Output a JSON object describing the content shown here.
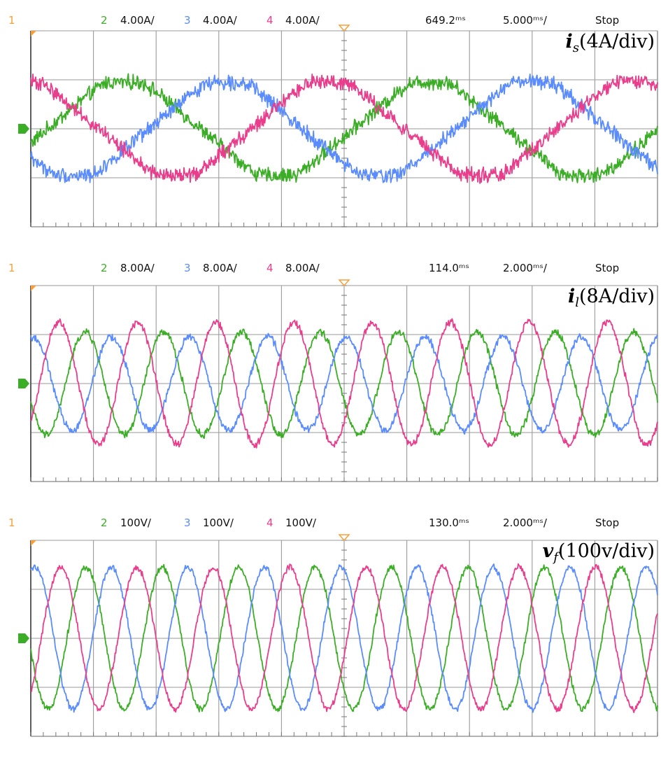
{
  "chart_data": [
    {
      "type": "line",
      "title_symbol": "i",
      "title_subscript": "s",
      "title_scale": "(4A/div)",
      "header": {
        "ch1": "1",
        "ch2_num": "2",
        "ch2_scale": "4.00A/",
        "ch3_num": "3",
        "ch3_scale": "4.00A/",
        "ch4_num": "4",
        "ch4_scale": "4.00A/",
        "delay": "649.2ᵐˢ",
        "timebase": "5.000ᵐˢ/",
        "status": "Stop"
      },
      "x_divisions": 10,
      "y_divisions": 4,
      "series": [
        {
          "channel": "2",
          "color": "#3cad26",
          "waveform": "trapezoid",
          "cycles": 2.05,
          "phase_deg": -20,
          "amplitude_div": 0.95,
          "offset_div": 0.0,
          "noise_div": 0.12
        },
        {
          "channel": "3",
          "color": "#5b8cff",
          "waveform": "trapezoid",
          "cycles": 2.05,
          "phase_deg": 220,
          "amplitude_div": 0.95,
          "offset_div": 0.0,
          "noise_div": 0.12
        },
        {
          "channel": "4",
          "color": "#e83e8c",
          "waveform": "trapezoid",
          "cycles": 2.05,
          "phase_deg": 100,
          "amplitude_div": 0.95,
          "offset_div": 0.0,
          "noise_div": 0.12
        }
      ]
    },
    {
      "type": "line",
      "title_symbol": "i",
      "title_subscript": "l",
      "title_scale": "(8A/div)",
      "header": {
        "ch1": "1",
        "ch2_num": "2",
        "ch2_scale": "8.00A/",
        "ch3_num": "3",
        "ch3_scale": "8.00A/",
        "ch4_num": "4",
        "ch4_scale": "8.00A/",
        "delay": "114.0ᵐˢ",
        "timebase": "2.000ᵐˢ/",
        "status": "Stop"
      },
      "x_divisions": 10,
      "y_divisions": 4,
      "series": [
        {
          "channel": "2",
          "color": "#3cad26",
          "waveform": "sine",
          "cycles": 8.0,
          "phase_deg": 200,
          "amplitude_div": 1.05,
          "offset_div": 0.0,
          "noise_div": 0.06
        },
        {
          "channel": "3",
          "color": "#5b8cff",
          "waveform": "sine",
          "cycles": 8.0,
          "phase_deg": 80,
          "amplitude_div": 0.95,
          "offset_div": 0.0,
          "noise_div": 0.06
        },
        {
          "channel": "4",
          "color": "#e83e8c",
          "waveform": "sine",
          "cycles": 8.0,
          "phase_deg": -40,
          "amplitude_div": 1.25,
          "offset_div": 0.0,
          "noise_div": 0.06
        }
      ]
    },
    {
      "type": "line",
      "title_symbol": "v",
      "title_subscript": "f",
      "title_scale": "(100v/div)",
      "header": {
        "ch1": "1",
        "ch2_num": "2",
        "ch2_scale": "100V/",
        "ch3_num": "3",
        "ch3_scale": "100V/",
        "ch4_num": "4",
        "ch4_scale": "100V/",
        "delay": "130.0ᵐˢ",
        "timebase": "2.000ᵐˢ/",
        "status": "Stop"
      },
      "x_divisions": 10,
      "y_divisions": 4,
      "series": [
        {
          "channel": "2",
          "color": "#3cad26",
          "waveform": "sine",
          "cycles": 8.2,
          "phase_deg": 190,
          "amplitude_div": 1.45,
          "offset_div": 0.0,
          "noise_div": 0.05
        },
        {
          "channel": "3",
          "color": "#5b8cff",
          "waveform": "sine",
          "cycles": 8.2,
          "phase_deg": 70,
          "amplitude_div": 1.45,
          "offset_div": 0.0,
          "noise_div": 0.05
        },
        {
          "channel": "4",
          "color": "#e83e8c",
          "waveform": "sine",
          "cycles": 8.2,
          "phase_deg": -50,
          "amplitude_div": 1.45,
          "offset_div": 0.0,
          "noise_div": 0.05
        }
      ]
    }
  ]
}
